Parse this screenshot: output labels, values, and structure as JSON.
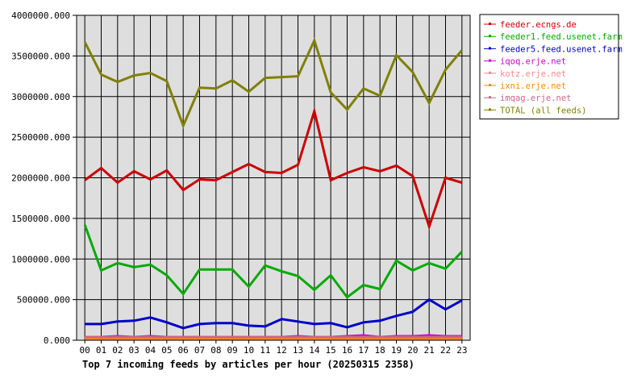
{
  "chart_data": {
    "type": "line",
    "title": "Top 7 incoming feeds by articles per hour (20250315 2358)",
    "xlabel": "",
    "ylabel": "",
    "ylim": [
      0,
      4000000
    ],
    "y_ticks": [
      0,
      500000,
      1000000,
      1500000,
      2000000,
      2500000,
      3000000,
      3500000,
      4000000
    ],
    "y_tick_labels": [
      "0.000",
      "500000.000",
      "1000000.000",
      "1500000.000",
      "2000000.000",
      "2500000.000",
      "3000000.000",
      "3500000.000",
      "4000000.000"
    ],
    "grid": true,
    "legend_position": "top-right",
    "categories": [
      "00",
      "01",
      "02",
      "03",
      "04",
      "05",
      "06",
      "07",
      "08",
      "09",
      "10",
      "11",
      "12",
      "13",
      "14",
      "15",
      "16",
      "17",
      "18",
      "19",
      "20",
      "21",
      "22",
      "23"
    ],
    "series": [
      {
        "name": "feeder.ecngs.de",
        "color": "#cc0000",
        "values": [
          1970000,
          2120000,
          1940000,
          2080000,
          1980000,
          2090000,
          1850000,
          1980000,
          1970000,
          2070000,
          2170000,
          2070000,
          2060000,
          2160000,
          2820000,
          1970000,
          2060000,
          2130000,
          2080000,
          2150000,
          2020000,
          1400000,
          2000000,
          1940000
        ]
      },
      {
        "name": "feeder1.feed.usenet.farm",
        "color": "#00aa00",
        "values": [
          1420000,
          860000,
          950000,
          900000,
          930000,
          800000,
          570000,
          870000,
          870000,
          870000,
          660000,
          920000,
          850000,
          790000,
          620000,
          800000,
          530000,
          680000,
          630000,
          980000,
          860000,
          950000,
          880000,
          1090000
        ]
      },
      {
        "name": "feeder5.feed.usenet.farm",
        "color": "#0000cc",
        "values": [
          200000,
          200000,
          230000,
          240000,
          280000,
          220000,
          150000,
          200000,
          210000,
          210000,
          180000,
          170000,
          260000,
          230000,
          200000,
          210000,
          160000,
          220000,
          240000,
          300000,
          350000,
          500000,
          380000,
          490000
        ]
      },
      {
        "name": "iqoq.erje.net",
        "color": "#cc00cc",
        "values": [
          40000,
          40000,
          50000,
          40000,
          50000,
          40000,
          40000,
          40000,
          40000,
          40000,
          40000,
          40000,
          40000,
          50000,
          40000,
          40000,
          50000,
          60000,
          40000,
          50000,
          50000,
          60000,
          50000,
          50000
        ]
      },
      {
        "name": "kotz.erje.net",
        "color": "#ff8888",
        "values": [
          30000,
          30000,
          30000,
          30000,
          30000,
          30000,
          30000,
          30000,
          30000,
          30000,
          30000,
          30000,
          30000,
          30000,
          30000,
          30000,
          30000,
          30000,
          30000,
          30000,
          30000,
          30000,
          30000,
          30000
        ]
      },
      {
        "name": "ixni.erje.net",
        "color": "#ff8800",
        "values": [
          20000,
          20000,
          20000,
          20000,
          20000,
          20000,
          20000,
          20000,
          20000,
          20000,
          20000,
          20000,
          20000,
          20000,
          20000,
          20000,
          20000,
          20000,
          20000,
          20000,
          20000,
          20000,
          20000,
          20000
        ]
      },
      {
        "name": "imqag.erje.net",
        "color": "#cc6688",
        "values": [
          40000,
          40000,
          40000,
          40000,
          40000,
          40000,
          40000,
          40000,
          40000,
          40000,
          40000,
          40000,
          40000,
          40000,
          40000,
          40000,
          40000,
          40000,
          40000,
          40000,
          40000,
          40000,
          40000,
          40000
        ]
      },
      {
        "name": "TOTAL (all feeds)",
        "color": "#808000",
        "values": [
          3670000,
          3270000,
          3180000,
          3260000,
          3290000,
          3190000,
          2640000,
          3110000,
          3100000,
          3200000,
          3060000,
          3230000,
          3240000,
          3250000,
          3690000,
          3050000,
          2840000,
          3100000,
          3010000,
          3510000,
          3300000,
          2920000,
          3330000,
          3570000
        ]
      }
    ]
  }
}
